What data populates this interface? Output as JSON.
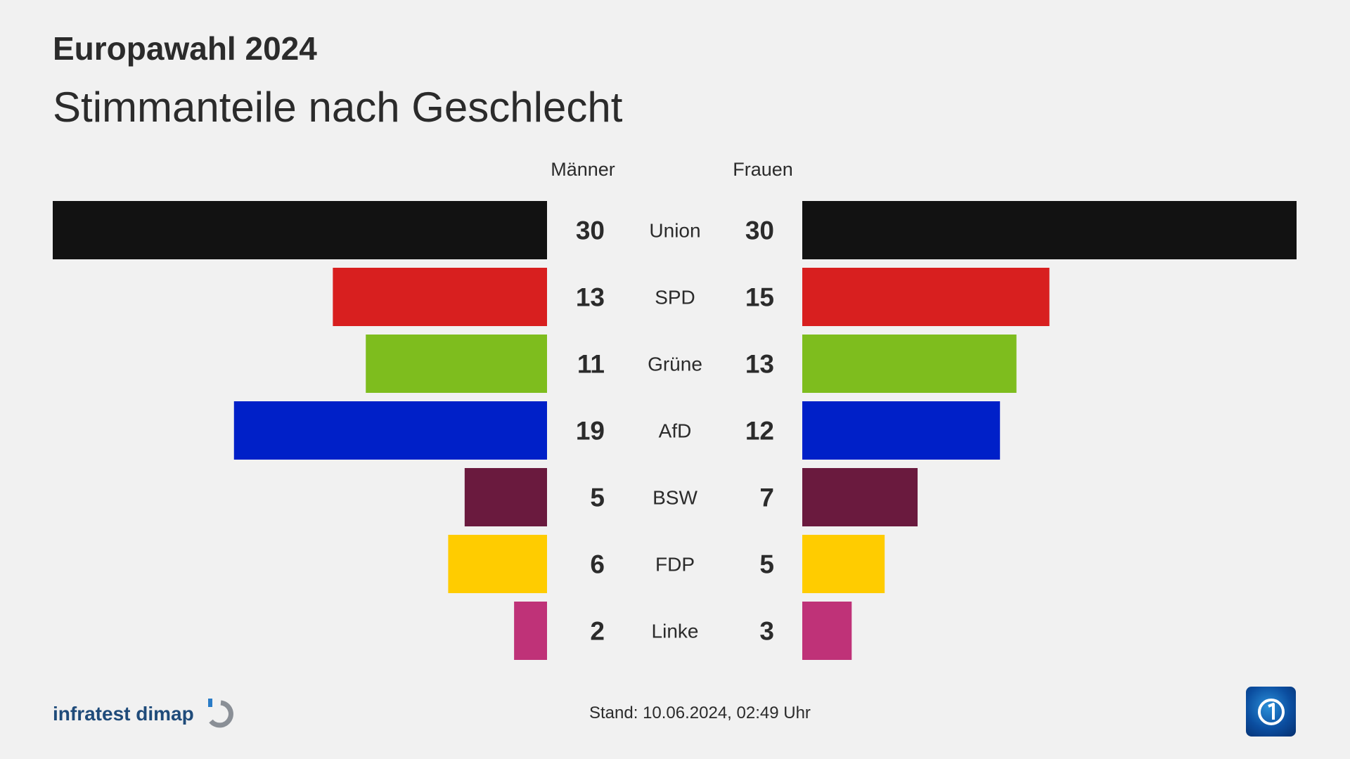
{
  "header": {
    "kicker": "Europawahl 2024",
    "title": "Stimmanteile nach Geschlecht"
  },
  "chart_data": {
    "type": "bar",
    "layout": "butterfly",
    "categories": [
      "Union",
      "SPD",
      "Grüne",
      "AfD",
      "BSW",
      "FDP",
      "Linke"
    ],
    "series": [
      {
        "name": "Männer",
        "values": [
          30,
          13,
          11,
          19,
          5,
          6,
          2
        ]
      },
      {
        "name": "Frauen",
        "values": [
          30,
          15,
          13,
          12,
          7,
          5,
          3
        ]
      }
    ],
    "colors": [
      "#121212",
      "#d81f1f",
      "#7ebd1e",
      "#0020c8",
      "#6a1a3e",
      "#ffcc00",
      "#bf3278"
    ],
    "xlim": [
      0,
      30
    ],
    "grid": false
  },
  "footer": {
    "brand": "infratest dimap",
    "stand_label": "Stand:",
    "stand_value": "10.06.2024, 02:49 Uhr",
    "broadcaster_logo": "tagesschau-logo-icon"
  }
}
